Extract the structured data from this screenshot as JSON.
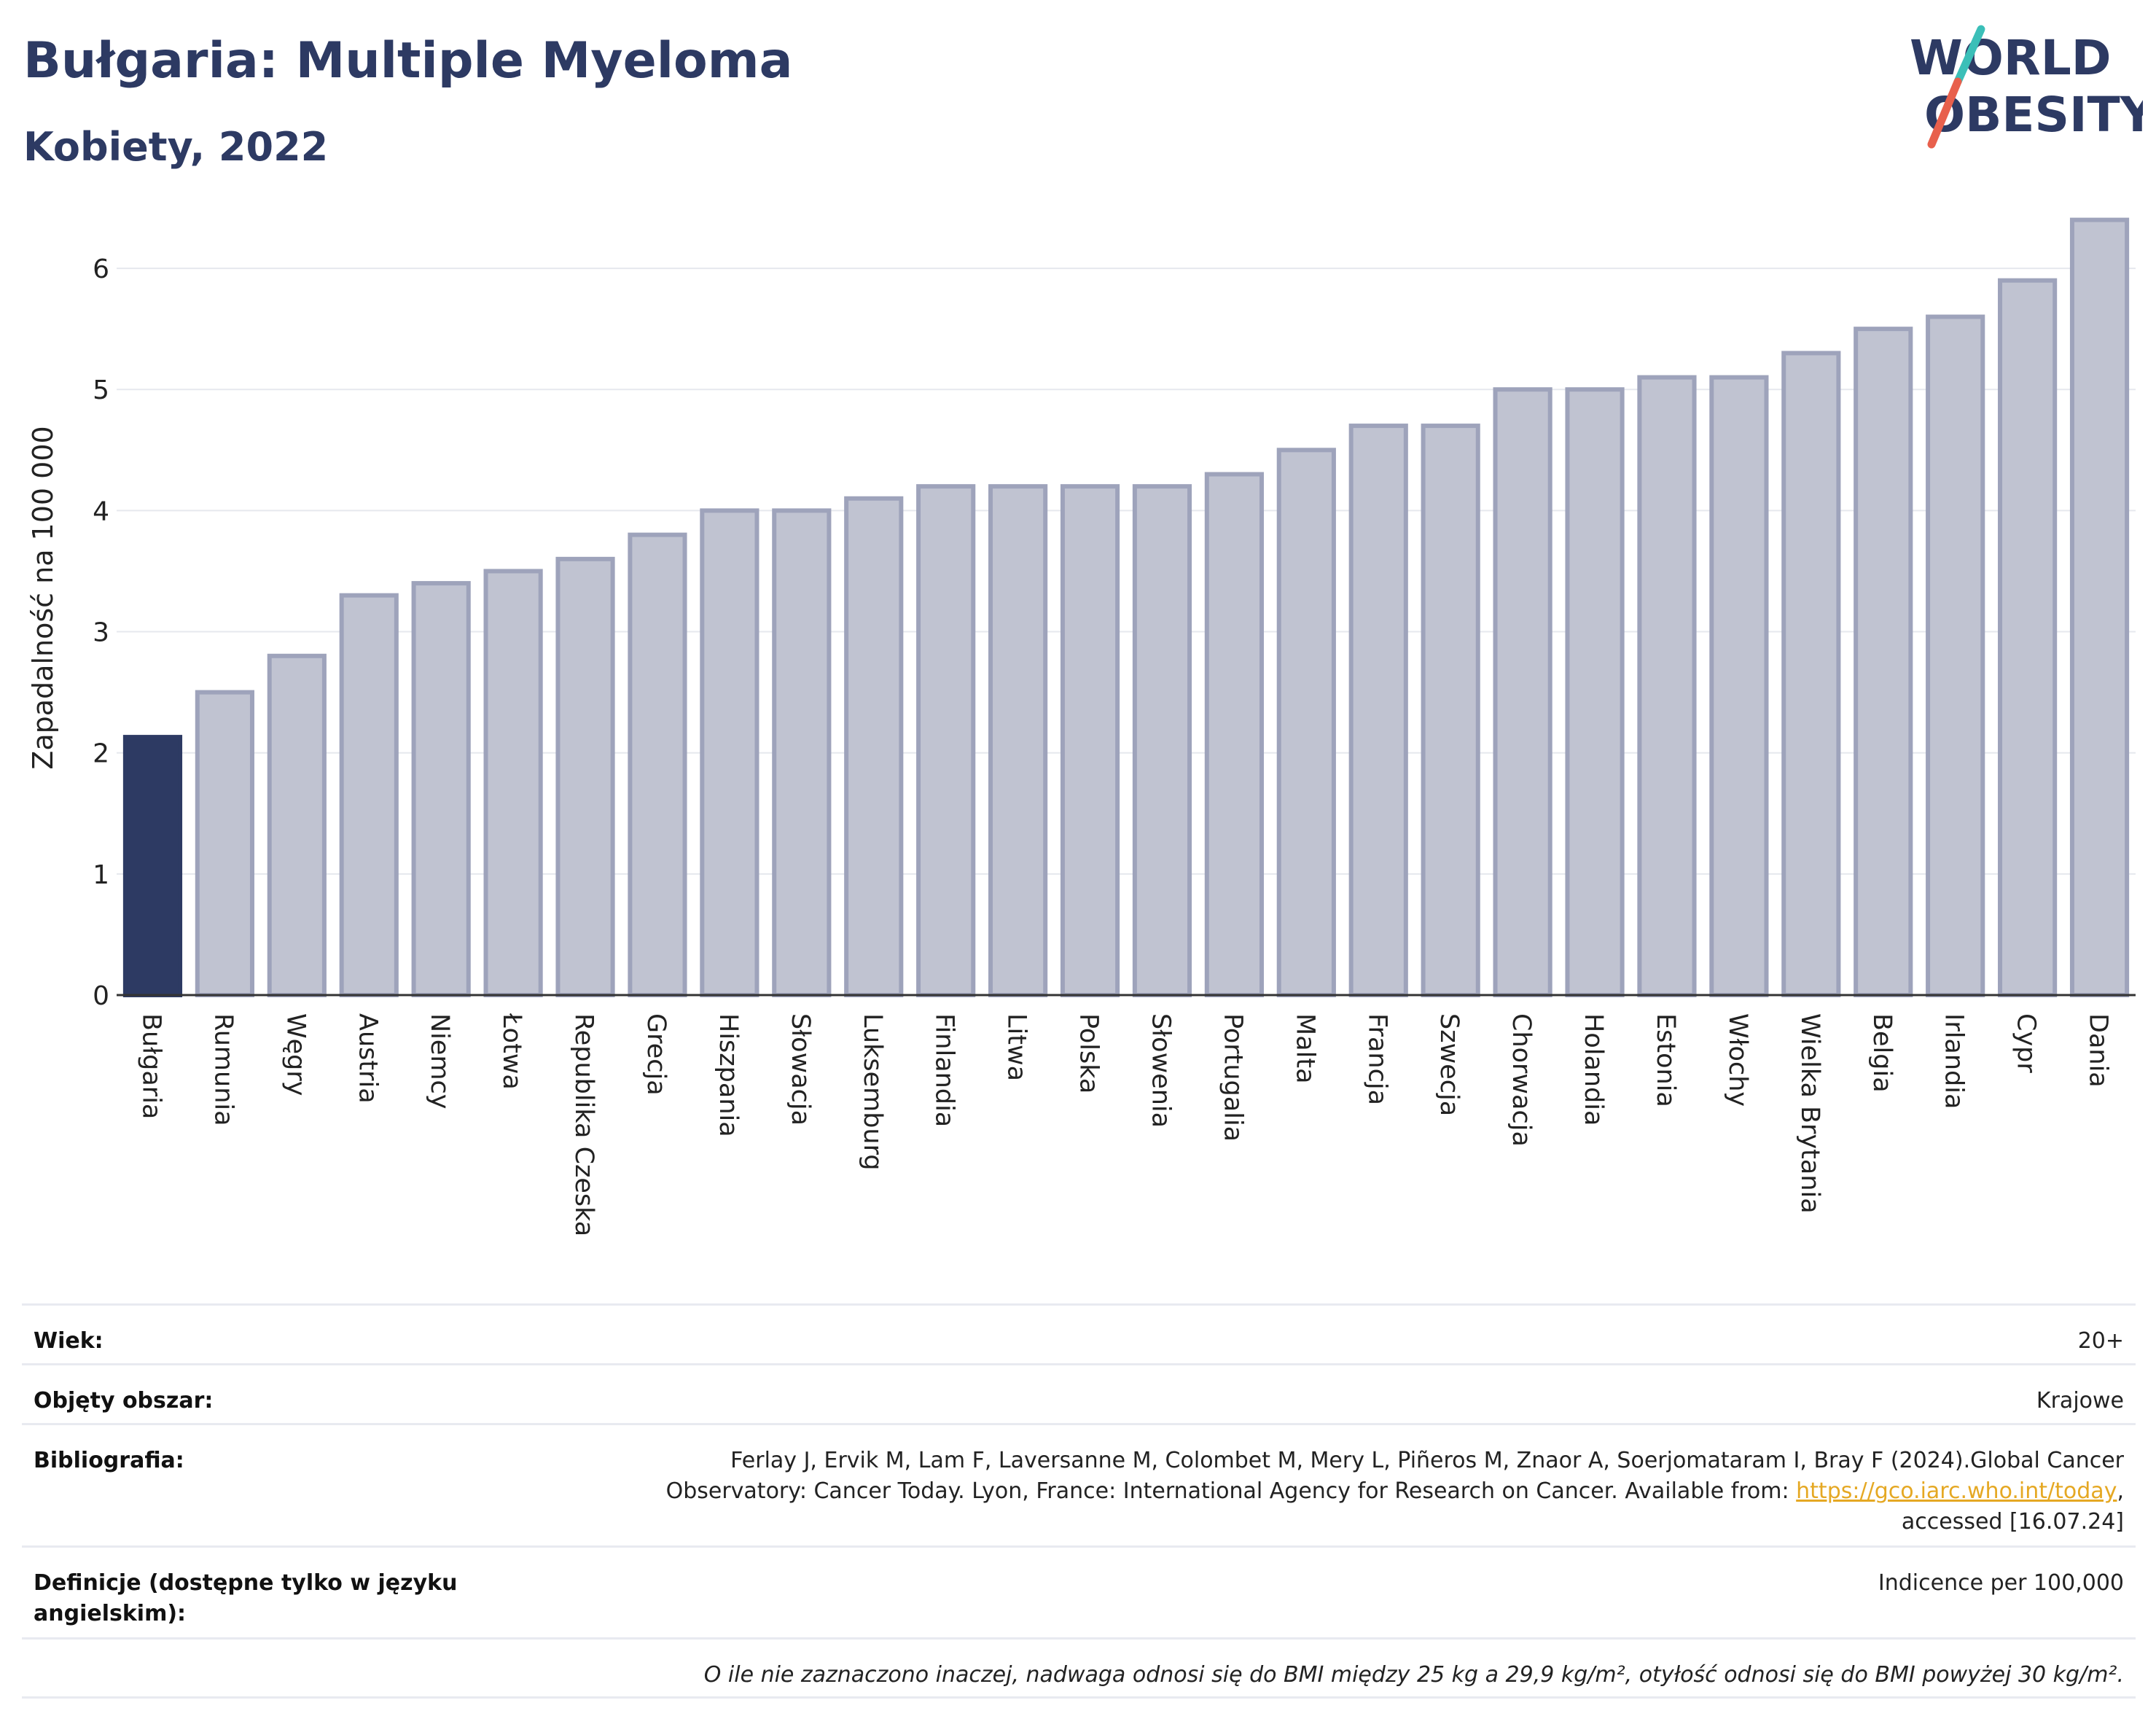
{
  "header": {
    "title": "Bułgaria: Multiple Myeloma",
    "subtitle": "Kobiety, 2022"
  },
  "logo": {
    "line1": "WORLD",
    "line2": "OBESITY",
    "colors": {
      "text": "#2d3a63",
      "slash_top": "#3bbfb8",
      "slash_bottom": "#e8604c"
    }
  },
  "chart_data": {
    "type": "bar",
    "ylabel": "Zapadalność na 100 000",
    "ylim": [
      0,
      6.5
    ],
    "yticks": [
      0,
      1,
      2,
      3,
      4,
      5,
      6
    ],
    "categories": [
      "Bułgaria",
      "Rumunia",
      "Węgry",
      "Austria",
      "Niemcy",
      "Łotwa",
      "Republika Czeska",
      "Grecja",
      "Hiszpania",
      "Słowacja",
      "Luksemburg",
      "Finlandia",
      "Litwa",
      "Polska",
      "Słowenia",
      "Portugalia",
      "Malta",
      "Francja",
      "Szwecja",
      "Chorwacja",
      "Holandia",
      "Estonia",
      "Włochy",
      "Wielka Brytania",
      "Belgia",
      "Irlandia",
      "Cypr",
      "Dania"
    ],
    "values": [
      2.13,
      2.5,
      2.8,
      3.3,
      3.4,
      3.5,
      3.6,
      3.8,
      4.0,
      4.0,
      4.1,
      4.2,
      4.2,
      4.2,
      4.2,
      4.3,
      4.5,
      4.7,
      4.7,
      5.0,
      5.0,
      5.1,
      5.1,
      5.3,
      5.5,
      5.6,
      5.9,
      6.4
    ],
    "highlight_index": 0,
    "colors": {
      "highlight": "#2d3a63",
      "bar_fill": "#c0c3d1",
      "bar_stroke": "#9ea3bb",
      "grid": "#e6e8ee",
      "axis": "#333333"
    },
    "grid": true
  },
  "info": {
    "age": {
      "label": "Wiek:",
      "value": "20+"
    },
    "coverage": {
      "label": "Objęty obszar:",
      "value": "Krajowe"
    },
    "bibliography": {
      "label": "Bibliografia:",
      "line1": "Ferlay J, Ervik M, Lam F, Laversanne M, Colombet M, Mery L, Piñeros M, Znaor A, Soerjomataram I, Bray F (2024).Global Cancer",
      "line2_prefix": "Observatory: Cancer Today. Lyon, France: International Agency for Research on Cancer. Available from: ",
      "link": "https://gco.iarc.who.int/today",
      "line2_suffix": ",",
      "line3": "accessed [16.07.24]"
    },
    "definitions": {
      "label": "Definicje (dostępne tylko w języku angielskim):",
      "value": "Indicence per 100,000"
    },
    "note": "O ile nie zaznaczono inaczej, nadwaga odnosi się do BMI między 25 kg a 29,9 kg/m², otyłość odnosi się do BMI powyżej 30 kg/m²."
  }
}
